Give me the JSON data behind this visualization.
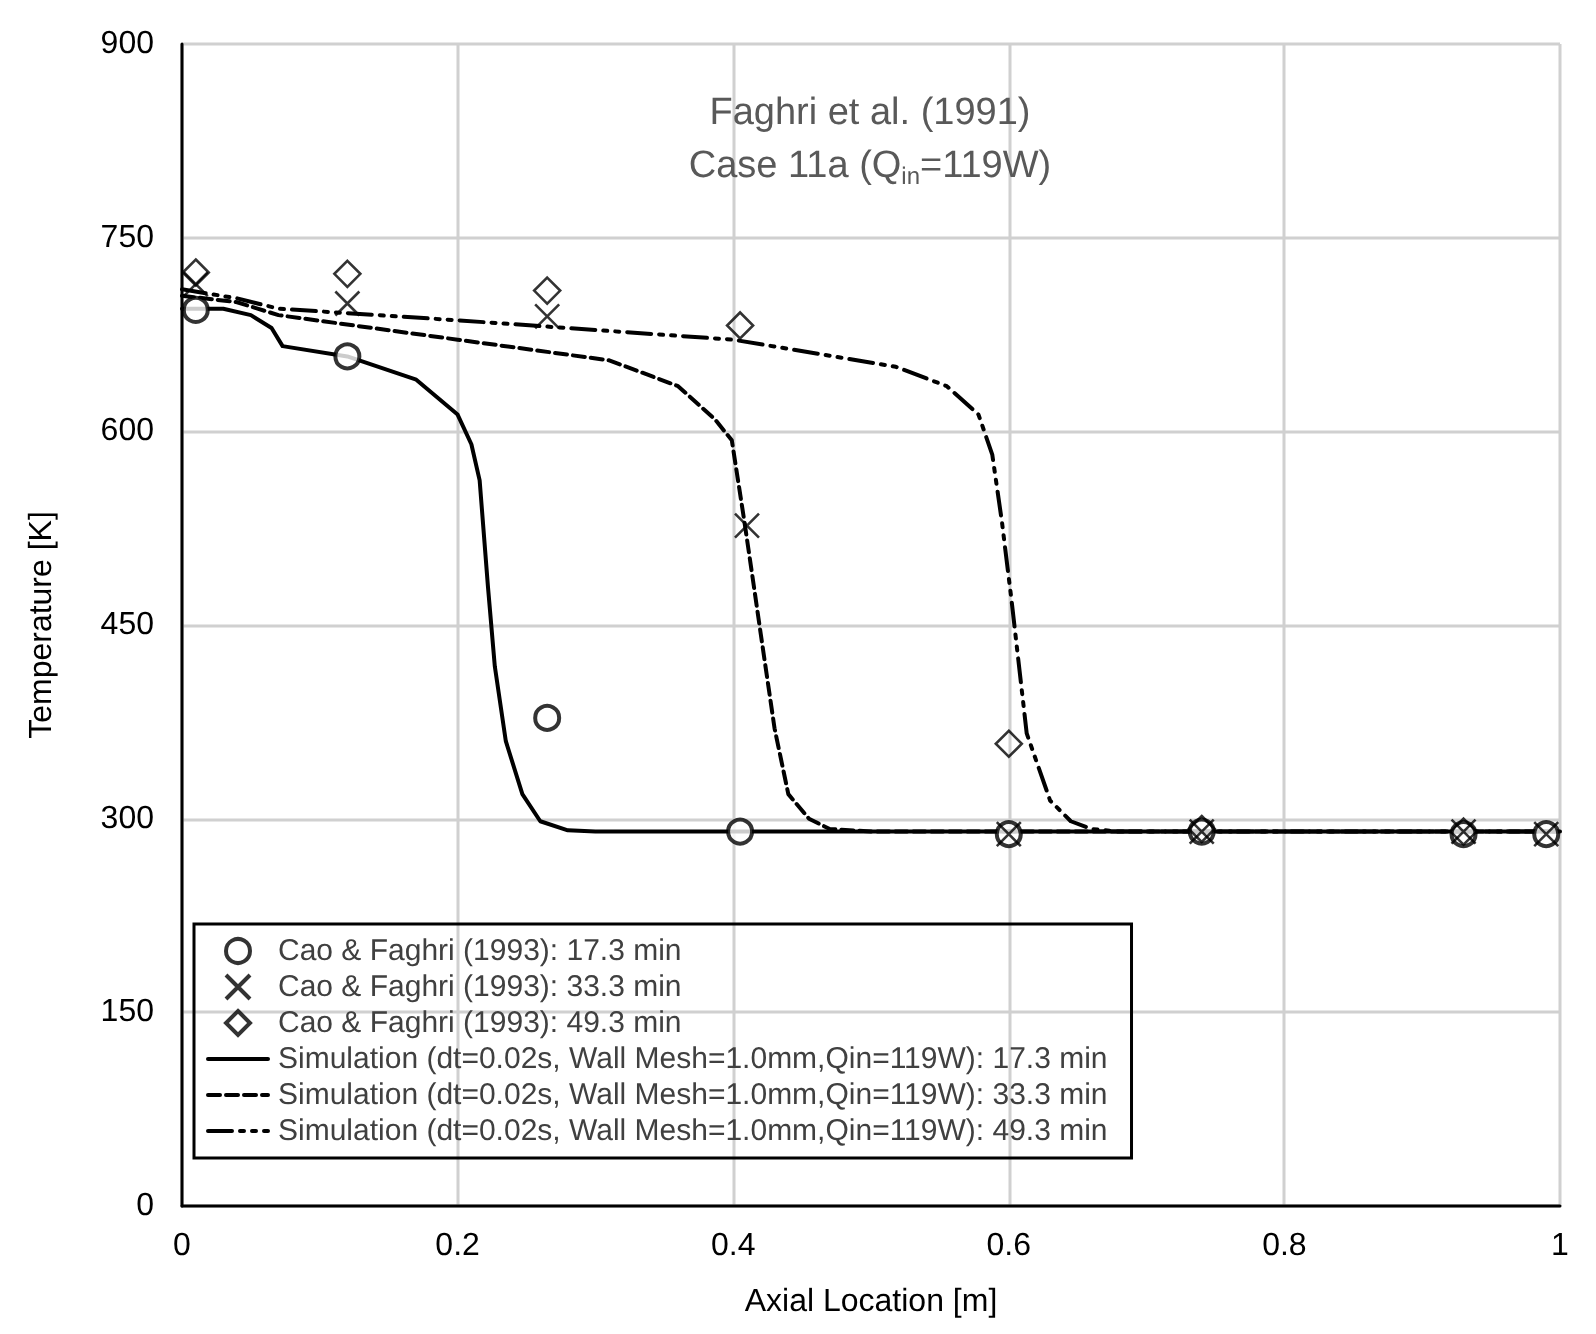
{
  "chart_data": {
    "type": "line",
    "title": "Faghri et al. (1991)",
    "subtitle": "Case 11a (Q$_{in}$=119W)",
    "xlabel": "Axial Location [m]",
    "ylabel": "Temperature [K]",
    "xlim": [
      0,
      1
    ],
    "xticks": [
      0,
      0.2,
      0.4,
      0.6,
      0.8,
      1
    ],
    "ylim": [
      0,
      900
    ],
    "yticks": [
      0,
      150,
      300,
      450,
      600,
      750,
      900
    ],
    "grid": true,
    "legend": "bottom left",
    "series": [
      {
        "name": "Cao & Faghri (1993): 17.3 min",
        "type": "scatter",
        "marker": "circle",
        "color": "#000000",
        "x": [
          0.01,
          0.12,
          0.265,
          0.405,
          0.6,
          0.74,
          0.93,
          0.99
        ],
        "values": [
          694,
          658,
          378,
          290,
          288,
          290,
          288,
          288
        ]
      },
      {
        "name": "Cao & Faghri (1993): 33.3 min",
        "type": "scatter",
        "marker": "cross",
        "color": "#000000",
        "x": [
          0.01,
          0.12,
          0.265,
          0.41,
          0.6,
          0.74,
          0.93,
          0.99
        ],
        "values": [
          714,
          699,
          689,
          527,
          288,
          290,
          290,
          288
        ]
      },
      {
        "name": "Cao & Faghri (1993): 49.3 min",
        "type": "scatter",
        "marker": "diamond",
        "color": "#000000",
        "x": [
          0.01,
          0.12,
          0.265,
          0.405,
          0.6,
          0.74,
          0.93
        ],
        "values": [
          723,
          722,
          709,
          682,
          358,
          292,
          290
        ]
      },
      {
        "name": "Simulation (dt=0.02s, Wall Mesh=1.0mm,Qin=119W): 17.3 min",
        "line_style": "solid",
        "color": "#000000",
        "x": [
          0,
          0.03,
          0.05,
          0.065,
          0.073,
          0.12,
          0.17,
          0.2,
          0.21,
          0.216,
          0.222,
          0.227,
          0.235,
          0.247,
          0.26,
          0.28,
          0.3,
          1
        ],
        "values": [
          695,
          695,
          690,
          680,
          666,
          658,
          640,
          613,
          590,
          562,
          480,
          418,
          360,
          319,
          298,
          291,
          290,
          290
        ]
      },
      {
        "name": "Simulation (dt=0.02s, Wall Mesh=1.0mm,Qin=119W): 33.3 min",
        "line_style": "dashed",
        "color": "#000000",
        "x": [
          0,
          0.04,
          0.07,
          0.2,
          0.31,
          0.36,
          0.387,
          0.399,
          0.408,
          0.415,
          0.42,
          0.43,
          0.44,
          0.455,
          0.47,
          0.5,
          1
        ],
        "values": [
          705,
          700,
          690,
          671,
          655,
          635,
          609,
          593,
          531,
          480,
          443,
          370,
          319,
          300,
          292,
          290,
          290
        ]
      },
      {
        "name": "Simulation (dt=0.02s, Wall Mesh=1.0mm,Qin=119W): 49.3 min",
        "line_style": "dashed-dotted",
        "color": "#000000",
        "x": [
          0,
          0.04,
          0.07,
          0.2,
          0.4,
          0.518,
          0.555,
          0.578,
          0.588,
          0.595,
          0.602,
          0.613,
          0.63,
          0.645,
          0.66,
          0.68,
          1
        ],
        "values": [
          710,
          703,
          695,
          686,
          671,
          650,
          635,
          613,
          582,
          530,
          469,
          366,
          314,
          298,
          292,
          290,
          290
        ]
      }
    ]
  }
}
